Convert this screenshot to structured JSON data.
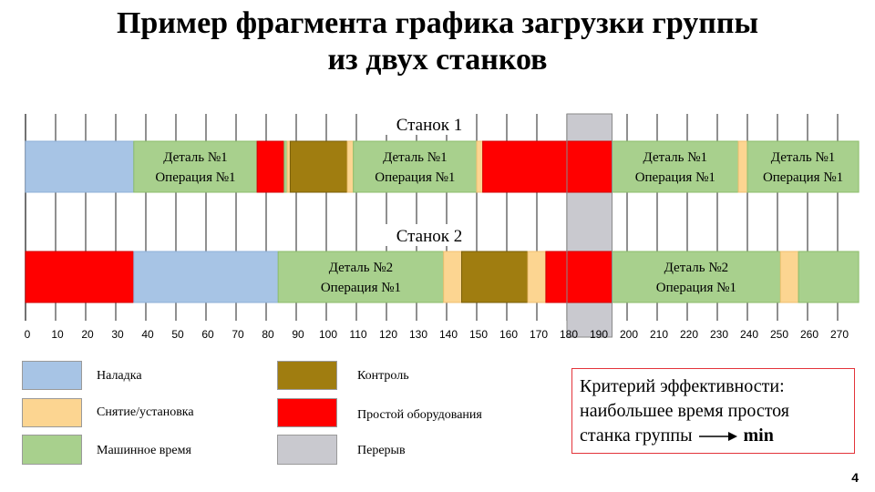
{
  "slide": {
    "title_line1": "Пример фрагмента графика загрузки группы",
    "title_line2": "из двух станков",
    "page_number": "4"
  },
  "colors": {
    "setup": "#a7c4e5",
    "load_unload": "#fcd591",
    "machine_time": "#a8d08d",
    "control": "#a07d10",
    "downtime": "#ff0000",
    "break": "#c9c9cf"
  },
  "chart_data": {
    "type": "gantt",
    "x_range": [
      0,
      270
    ],
    "ticks": [
      0,
      10,
      20,
      30,
      40,
      50,
      60,
      70,
      80,
      90,
      100,
      110,
      120,
      130,
      140,
      150,
      160,
      170,
      180,
      190,
      200,
      210,
      220,
      230,
      240,
      250,
      260,
      270
    ],
    "tick_labels": [
      "0",
      "10",
      "20",
      "30",
      "40",
      "50",
      "60",
      "70",
      "80",
      "90",
      "100",
      "110",
      "120",
      "130",
      "140",
      "150",
      "160",
      "170",
      "180",
      "190",
      "200",
      "210",
      "220",
      "230",
      "240",
      "250",
      "260",
      "270"
    ],
    "break_interval": [
      180,
      195
    ],
    "machines": [
      {
        "name": "Станок 1",
        "segments": [
          {
            "start": 0,
            "end": 36,
            "kind": "setup"
          },
          {
            "start": 36,
            "end": 77,
            "kind": "machine_time",
            "label_line1": "Деталь №1",
            "label_line2": "Операция №1"
          },
          {
            "start": 77,
            "end": 86,
            "kind": "downtime"
          },
          {
            "start": 86,
            "end": 87,
            "kind": "machine_time"
          },
          {
            "start": 87,
            "end": 88,
            "kind": "load_unload"
          },
          {
            "start": 88,
            "end": 107,
            "kind": "control"
          },
          {
            "start": 107,
            "end": 109,
            "kind": "load_unload"
          },
          {
            "start": 109,
            "end": 150,
            "kind": "machine_time",
            "label_line1": "Деталь №1",
            "label_line2": "Операция №1"
          },
          {
            "start": 150,
            "end": 152,
            "kind": "load_unload"
          },
          {
            "start": 152,
            "end": 195,
            "kind": "downtime"
          },
          {
            "start": 195,
            "end": 237,
            "kind": "machine_time",
            "label_line1": "Деталь №1",
            "label_line2": "Операция №1"
          },
          {
            "start": 237,
            "end": 240,
            "kind": "load_unload"
          },
          {
            "start": 240,
            "end": 277,
            "kind": "machine_time",
            "label_line1": "Деталь №1",
            "label_line2": "Операция №1"
          }
        ]
      },
      {
        "name": "Станок 2",
        "segments": [
          {
            "start": 0,
            "end": 36,
            "kind": "downtime"
          },
          {
            "start": 36,
            "end": 84,
            "kind": "setup"
          },
          {
            "start": 84,
            "end": 139,
            "kind": "machine_time",
            "label_line1": "Деталь №2",
            "label_line2": "Операция №1"
          },
          {
            "start": 139,
            "end": 145,
            "kind": "load_unload"
          },
          {
            "start": 145,
            "end": 167,
            "kind": "control"
          },
          {
            "start": 167,
            "end": 173,
            "kind": "load_unload"
          },
          {
            "start": 173,
            "end": 195,
            "kind": "downtime"
          },
          {
            "start": 195,
            "end": 251,
            "kind": "machine_time",
            "label_line1": "Деталь №2",
            "label_line2": "Операция №1"
          },
          {
            "start": 251,
            "end": 257,
            "kind": "load_unload"
          },
          {
            "start": 257,
            "end": 277,
            "kind": "machine_time"
          }
        ]
      }
    ],
    "legend": [
      {
        "kind": "setup",
        "label": "Наладка"
      },
      {
        "kind": "load_unload",
        "label": "Снятие/установка"
      },
      {
        "kind": "machine_time",
        "label": "Машинное время"
      },
      {
        "kind": "control",
        "label": "Контроль"
      },
      {
        "kind": "downtime",
        "label": "Простой оборудования"
      },
      {
        "kind": "break",
        "label": "Перерыв"
      }
    ]
  },
  "criterion": {
    "line1": "Критерий эффективности:",
    "line2": "наибольшее время простоя",
    "line3_text": "станка группы",
    "line3_value": "min"
  }
}
